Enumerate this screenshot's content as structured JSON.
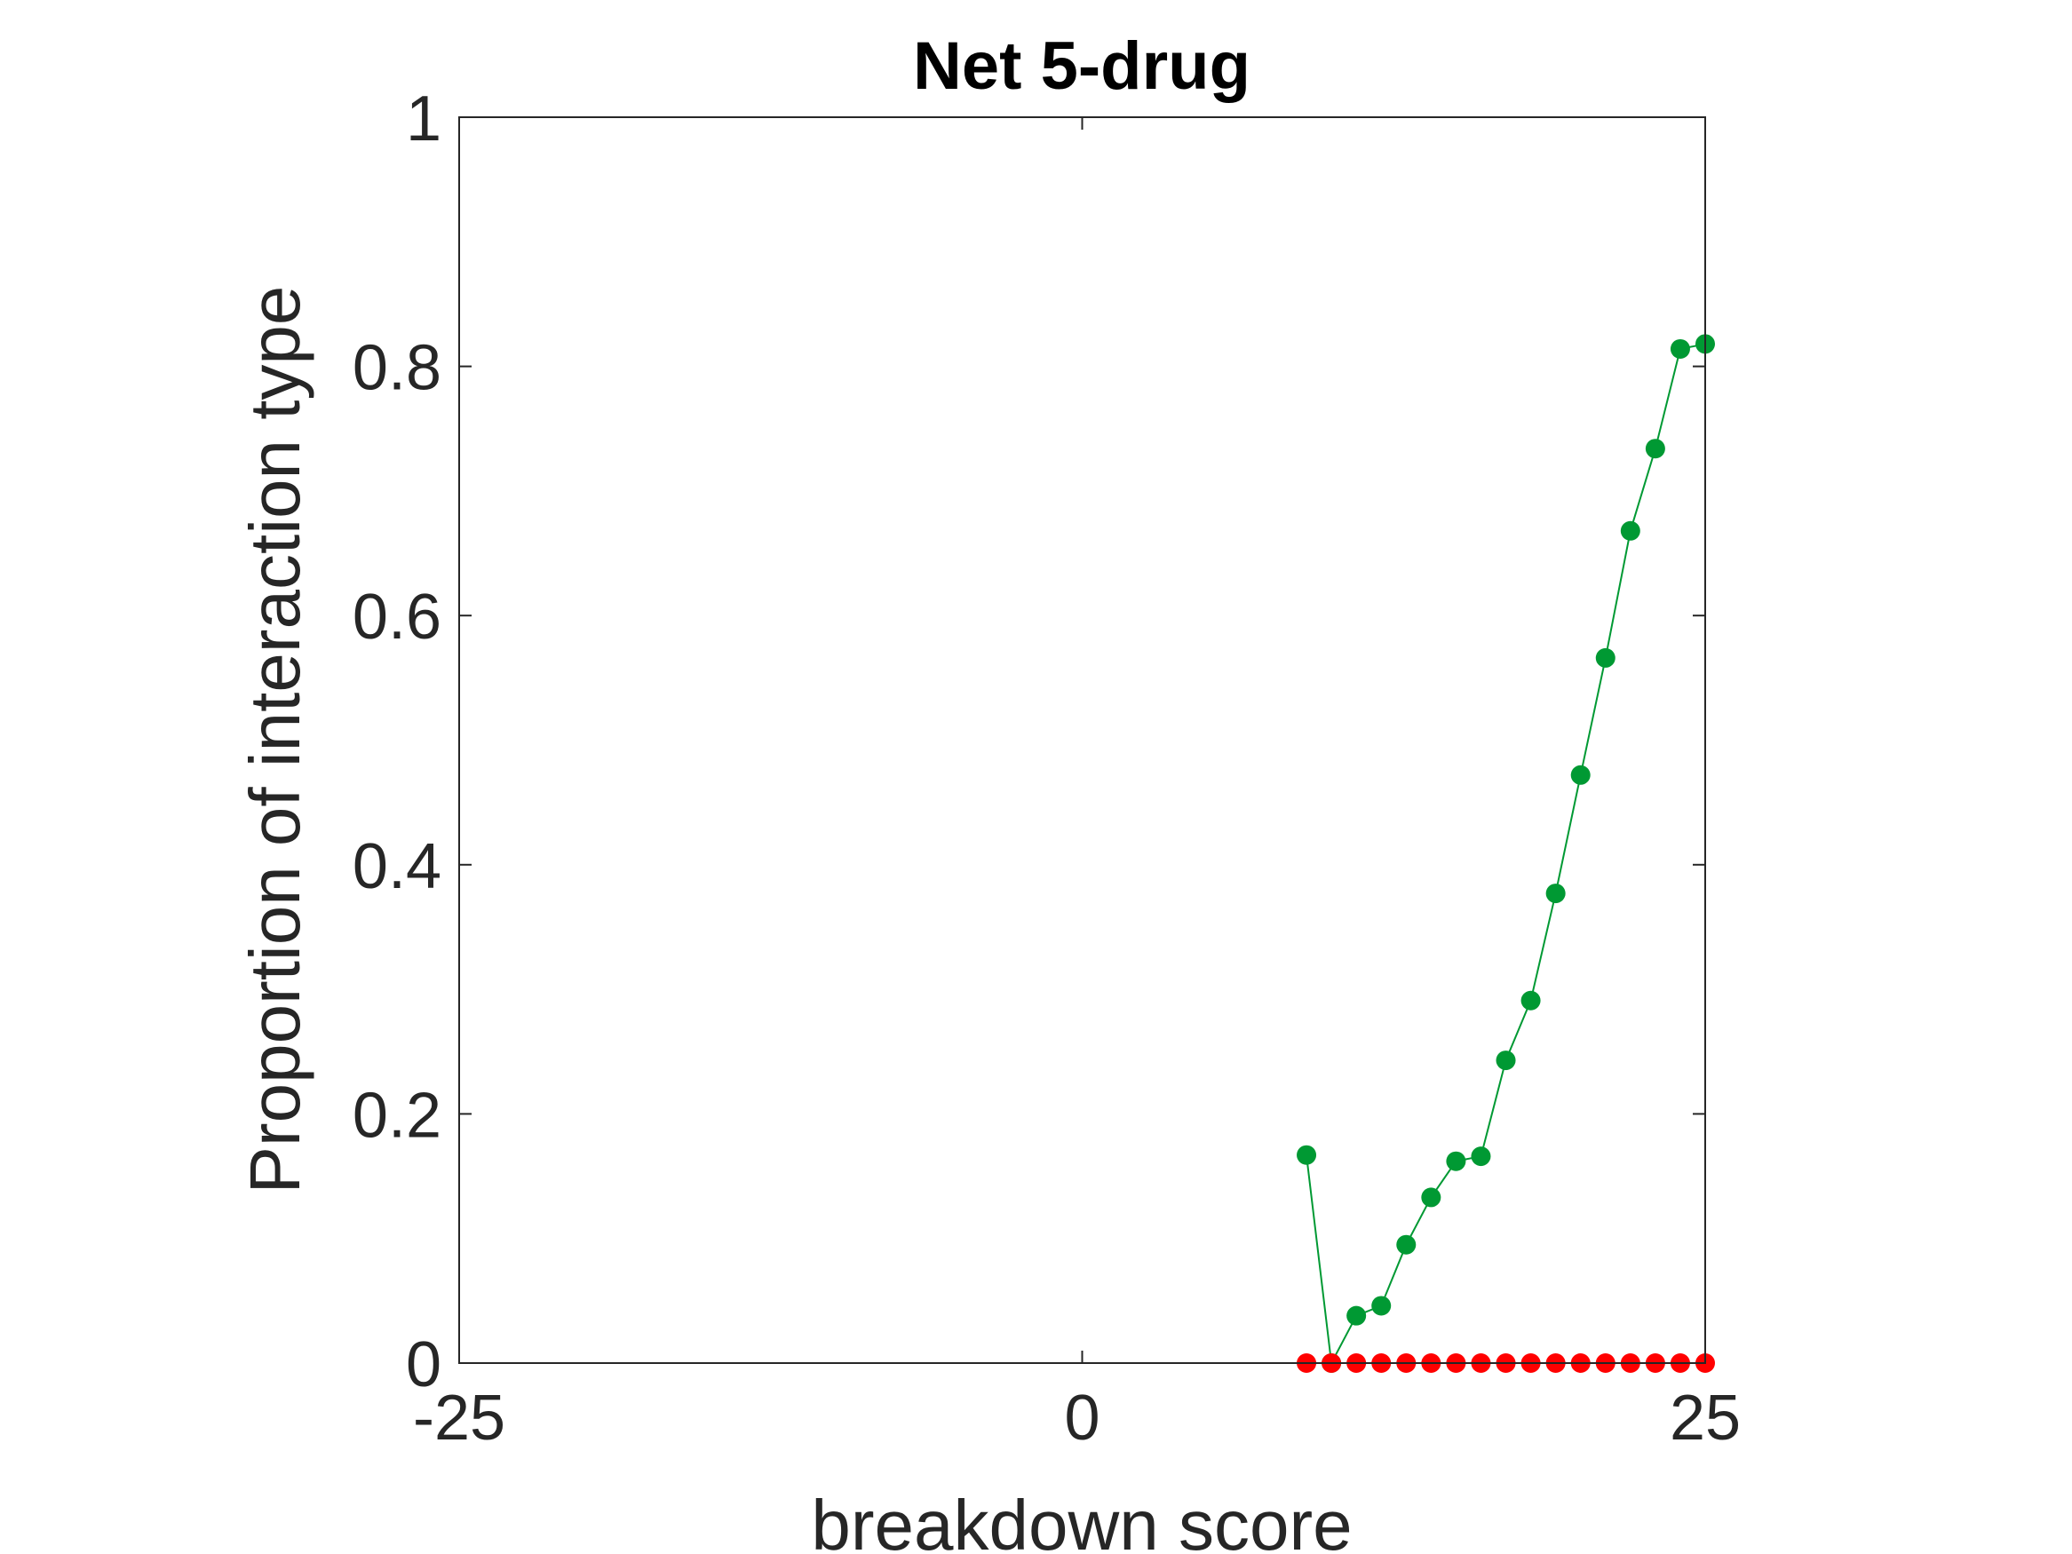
{
  "chart_data": {
    "type": "line",
    "title": "Net 5-drug",
    "xlabel": "breakdown score",
    "ylabel": "Proportion of interaction type",
    "xlim": [
      -25,
      25
    ],
    "ylim": [
      0,
      1
    ],
    "xticks": [
      -25,
      0,
      25
    ],
    "xtick_labels": [
      "-25",
      "0",
      "25"
    ],
    "yticks": [
      0,
      0.2,
      0.4,
      0.6,
      0.8,
      1
    ],
    "ytick_labels": [
      "0",
      "0.2",
      "0.4",
      "0.6",
      "0.8",
      "1"
    ],
    "grid": false,
    "series": [
      {
        "name": "green",
        "color": "#009933",
        "x": [
          9,
          10,
          11,
          12,
          13,
          14,
          15,
          16,
          17,
          18,
          19,
          20,
          21,
          22,
          23,
          24,
          25
        ],
        "values": [
          0.167,
          0.0,
          0.038,
          0.046,
          0.095,
          0.133,
          0.162,
          0.166,
          0.243,
          0.291,
          0.377,
          0.472,
          0.566,
          0.668,
          0.734,
          0.814,
          0.818
        ]
      },
      {
        "name": "red",
        "color": "#ff0000",
        "x": [
          9,
          10,
          11,
          12,
          13,
          14,
          15,
          16,
          17,
          18,
          19,
          20,
          21,
          22,
          23,
          24,
          25
        ],
        "values": [
          0,
          0,
          0,
          0,
          0,
          0,
          0,
          0,
          0,
          0,
          0,
          0,
          0,
          0,
          0,
          0,
          0
        ]
      }
    ]
  }
}
